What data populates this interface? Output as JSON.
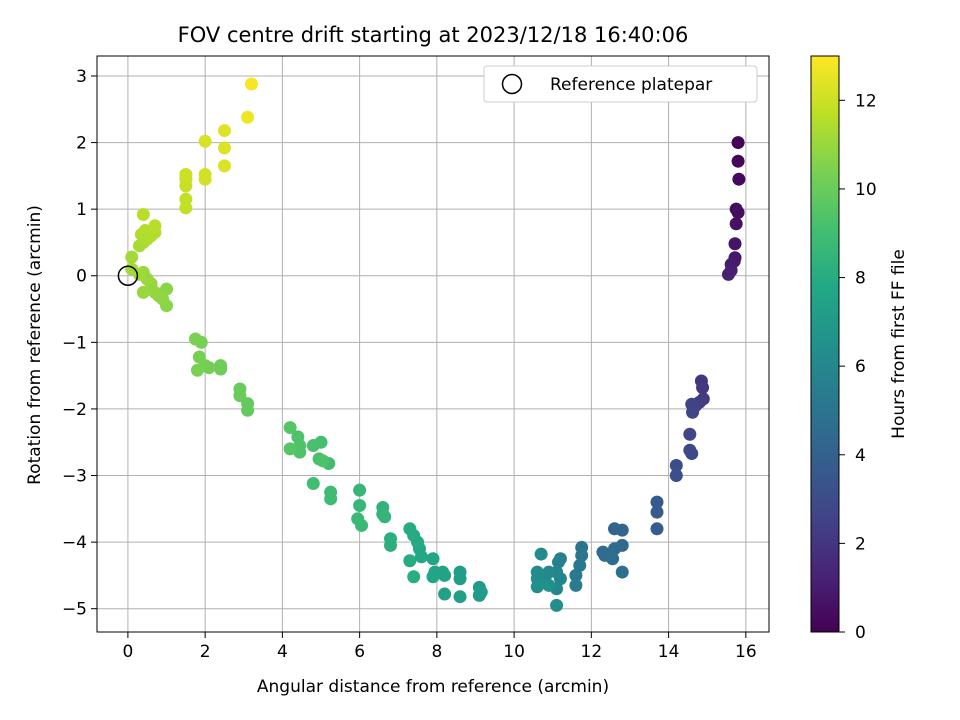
{
  "chart_data": {
    "type": "scatter",
    "title": "FOV centre drift starting at 2023/12/18 16:40:06",
    "xlabel": "Angular distance from reference (arcmin)",
    "ylabel": "Rotation from reference (arcmin)",
    "xlim": [
      -0.8,
      16.6
    ],
    "ylim": [
      -5.35,
      3.3
    ],
    "xticks": [
      0,
      2,
      4,
      6,
      8,
      10,
      12,
      14,
      16
    ],
    "yticks": [
      -5,
      -4,
      -3,
      -2,
      -1,
      0,
      1,
      2,
      3
    ],
    "grid": true,
    "legend": {
      "position": "top-right",
      "entries": [
        "Reference platepar"
      ]
    },
    "reference_point": {
      "x": 0,
      "y": 0
    },
    "colorbar": {
      "label": "Hours from first FF file",
      "range": [
        0,
        13
      ],
      "ticks": [
        0,
        2,
        4,
        6,
        8,
        10,
        12
      ],
      "colormap": "viridis"
    },
    "points": [
      {
        "x": 15.8,
        "y": 2.0,
        "h": 0.1
      },
      {
        "x": 15.8,
        "y": 1.72,
        "h": 0.2
      },
      {
        "x": 15.82,
        "y": 1.45,
        "h": 0.3
      },
      {
        "x": 15.75,
        "y": 1.0,
        "h": 0.4
      },
      {
        "x": 15.8,
        "y": 0.95,
        "h": 0.5
      },
      {
        "x": 15.75,
        "y": 0.78,
        "h": 0.6
      },
      {
        "x": 15.72,
        "y": 0.48,
        "h": 0.7
      },
      {
        "x": 15.72,
        "y": 0.27,
        "h": 0.8
      },
      {
        "x": 15.7,
        "y": 0.22,
        "h": 0.9
      },
      {
        "x": 15.62,
        "y": 0.17,
        "h": 1.0
      },
      {
        "x": 15.62,
        "y": 0.08,
        "h": 1.1
      },
      {
        "x": 15.55,
        "y": 0.02,
        "h": 1.2
      },
      {
        "x": 14.85,
        "y": -1.58,
        "h": 2.0
      },
      {
        "x": 14.88,
        "y": -1.68,
        "h": 2.1
      },
      {
        "x": 14.9,
        "y": -1.85,
        "h": 2.2
      },
      {
        "x": 14.8,
        "y": -1.9,
        "h": 2.3
      },
      {
        "x": 14.7,
        "y": -1.95,
        "h": 2.4
      },
      {
        "x": 14.6,
        "y": -1.93,
        "h": 2.5
      },
      {
        "x": 14.62,
        "y": -2.05,
        "h": 2.6
      },
      {
        "x": 14.55,
        "y": -2.38,
        "h": 2.7
      },
      {
        "x": 14.55,
        "y": -2.62,
        "h": 2.8
      },
      {
        "x": 14.6,
        "y": -2.67,
        "h": 2.9
      },
      {
        "x": 14.2,
        "y": -2.85,
        "h": 3.1
      },
      {
        "x": 14.2,
        "y": -3.0,
        "h": 3.2
      },
      {
        "x": 13.7,
        "y": -3.4,
        "h": 3.6
      },
      {
        "x": 13.7,
        "y": -3.55,
        "h": 3.7
      },
      {
        "x": 13.7,
        "y": -3.8,
        "h": 3.8
      },
      {
        "x": 12.6,
        "y": -3.8,
        "h": 4.2
      },
      {
        "x": 12.8,
        "y": -3.82,
        "h": 4.3
      },
      {
        "x": 12.8,
        "y": -4.05,
        "h": 4.4
      },
      {
        "x": 12.6,
        "y": -4.1,
        "h": 4.5
      },
      {
        "x": 12.3,
        "y": -4.15,
        "h": 4.5
      },
      {
        "x": 12.35,
        "y": -4.2,
        "h": 4.6
      },
      {
        "x": 12.5,
        "y": -4.2,
        "h": 4.6
      },
      {
        "x": 12.55,
        "y": -4.25,
        "h": 4.7
      },
      {
        "x": 12.8,
        "y": -4.45,
        "h": 4.8
      },
      {
        "x": 11.75,
        "y": -4.08,
        "h": 5.0
      },
      {
        "x": 11.75,
        "y": -4.2,
        "h": 5.1
      },
      {
        "x": 11.7,
        "y": -4.35,
        "h": 5.2
      },
      {
        "x": 11.6,
        "y": -4.5,
        "h": 5.3
      },
      {
        "x": 11.6,
        "y": -4.65,
        "h": 5.4
      },
      {
        "x": 11.2,
        "y": -4.25,
        "h": 5.6
      },
      {
        "x": 11.15,
        "y": -4.3,
        "h": 5.7
      },
      {
        "x": 11.1,
        "y": -4.45,
        "h": 5.8
      },
      {
        "x": 11.2,
        "y": -4.55,
        "h": 5.9
      },
      {
        "x": 11.1,
        "y": -4.7,
        "h": 6.0
      },
      {
        "x": 10.9,
        "y": -4.45,
        "h": 6.1
      },
      {
        "x": 10.8,
        "y": -4.55,
        "h": 6.1
      },
      {
        "x": 10.7,
        "y": -4.6,
        "h": 6.2
      },
      {
        "x": 10.7,
        "y": -4.18,
        "h": 6.2
      },
      {
        "x": 10.6,
        "y": -4.45,
        "h": 6.3
      },
      {
        "x": 10.6,
        "y": -4.55,
        "h": 6.3
      },
      {
        "x": 10.6,
        "y": -4.67,
        "h": 6.4
      },
      {
        "x": 11.1,
        "y": -4.95,
        "h": 6.4
      },
      {
        "x": 10.9,
        "y": -4.65,
        "h": 6.5
      },
      {
        "x": 9.1,
        "y": -4.68,
        "h": 7.0
      },
      {
        "x": 9.1,
        "y": -4.8,
        "h": 7.0
      },
      {
        "x": 9.15,
        "y": -4.75,
        "h": 7.1
      },
      {
        "x": 8.6,
        "y": -4.45,
        "h": 7.2
      },
      {
        "x": 8.6,
        "y": -4.55,
        "h": 7.2
      },
      {
        "x": 8.6,
        "y": -4.82,
        "h": 7.3
      },
      {
        "x": 8.2,
        "y": -4.78,
        "h": 7.4
      },
      {
        "x": 8.2,
        "y": -4.5,
        "h": 7.5
      },
      {
        "x": 8.15,
        "y": -4.45,
        "h": 7.5
      },
      {
        "x": 7.9,
        "y": -4.25,
        "h": 7.6
      },
      {
        "x": 7.95,
        "y": -4.45,
        "h": 7.6
      },
      {
        "x": 7.9,
        "y": -4.52,
        "h": 7.7
      },
      {
        "x": 7.6,
        "y": -4.22,
        "h": 7.8
      },
      {
        "x": 7.55,
        "y": -4.1,
        "h": 7.8
      },
      {
        "x": 7.5,
        "y": -4.0,
        "h": 7.9
      },
      {
        "x": 7.4,
        "y": -3.9,
        "h": 7.9
      },
      {
        "x": 7.3,
        "y": -3.8,
        "h": 8.0
      },
      {
        "x": 7.3,
        "y": -4.28,
        "h": 8.0
      },
      {
        "x": 7.4,
        "y": -4.52,
        "h": 8.1
      },
      {
        "x": 6.8,
        "y": -3.95,
        "h": 8.2
      },
      {
        "x": 6.8,
        "y": -4.05,
        "h": 8.2
      },
      {
        "x": 6.6,
        "y": -3.48,
        "h": 8.4
      },
      {
        "x": 6.6,
        "y": -3.58,
        "h": 8.4
      },
      {
        "x": 6.65,
        "y": -3.62,
        "h": 8.5
      },
      {
        "x": 6.0,
        "y": -3.22,
        "h": 8.6
      },
      {
        "x": 6.0,
        "y": -3.45,
        "h": 8.6
      },
      {
        "x": 5.95,
        "y": -3.65,
        "h": 8.7
      },
      {
        "x": 6.05,
        "y": -3.75,
        "h": 8.7
      },
      {
        "x": 5.2,
        "y": -2.82,
        "h": 9.0
      },
      {
        "x": 5.25,
        "y": -3.25,
        "h": 8.9
      },
      {
        "x": 5.25,
        "y": -3.35,
        "h": 8.9
      },
      {
        "x": 4.8,
        "y": -3.12,
        "h": 9.0
      },
      {
        "x": 5.0,
        "y": -2.5,
        "h": 9.1
      },
      {
        "x": 4.8,
        "y": -2.55,
        "h": 9.2
      },
      {
        "x": 4.95,
        "y": -2.75,
        "h": 9.2
      },
      {
        "x": 5.05,
        "y": -2.78,
        "h": 9.3
      },
      {
        "x": 4.4,
        "y": -2.42,
        "h": 9.3
      },
      {
        "x": 4.45,
        "y": -2.55,
        "h": 9.4
      },
      {
        "x": 4.45,
        "y": -2.65,
        "h": 9.4
      },
      {
        "x": 4.2,
        "y": -2.28,
        "h": 9.5
      },
      {
        "x": 4.2,
        "y": -2.6,
        "h": 9.5
      },
      {
        "x": 3.1,
        "y": -1.92,
        "h": 9.9
      },
      {
        "x": 3.1,
        "y": -2.02,
        "h": 9.9
      },
      {
        "x": 2.9,
        "y": -1.7,
        "h": 10.0
      },
      {
        "x": 2.9,
        "y": -1.8,
        "h": 10.0
      },
      {
        "x": 2.4,
        "y": -1.35,
        "h": 10.1
      },
      {
        "x": 2.4,
        "y": -1.4,
        "h": 10.1
      },
      {
        "x": 2.1,
        "y": -1.38,
        "h": 10.2
      },
      {
        "x": 2.0,
        "y": -1.35,
        "h": 10.2
      },
      {
        "x": 1.85,
        "y": -1.22,
        "h": 10.3
      },
      {
        "x": 1.9,
        "y": -1.0,
        "h": 10.3
      },
      {
        "x": 1.75,
        "y": -0.95,
        "h": 10.4
      },
      {
        "x": 1.8,
        "y": -1.42,
        "h": 10.4
      },
      {
        "x": 1.0,
        "y": -0.45,
        "h": 10.7
      },
      {
        "x": 1.0,
        "y": -0.2,
        "h": 10.7
      },
      {
        "x": 0.9,
        "y": -0.35,
        "h": 10.8
      },
      {
        "x": 0.8,
        "y": -0.3,
        "h": 10.8
      },
      {
        "x": 0.7,
        "y": -0.25,
        "h": 10.9
      },
      {
        "x": 0.6,
        "y": -0.12,
        "h": 10.9
      },
      {
        "x": 0.5,
        "y": -0.05,
        "h": 11.0
      },
      {
        "x": 0.4,
        "y": 0.05,
        "h": 11.0
      },
      {
        "x": 0.4,
        "y": -0.25,
        "h": 11.0
      },
      {
        "x": 0.3,
        "y": 0.02,
        "h": 11.1
      },
      {
        "x": 0.1,
        "y": 0.1,
        "h": 11.2
      },
      {
        "x": 0.1,
        "y": 0.28,
        "h": 11.2
      },
      {
        "x": 0.3,
        "y": 0.45,
        "h": 11.3
      },
      {
        "x": 0.4,
        "y": 0.5,
        "h": 11.3
      },
      {
        "x": 0.5,
        "y": 0.55,
        "h": 11.4
      },
      {
        "x": 0.35,
        "y": 0.62,
        "h": 11.4
      },
      {
        "x": 0.45,
        "y": 0.68,
        "h": 11.5
      },
      {
        "x": 0.6,
        "y": 0.6,
        "h": 11.5
      },
      {
        "x": 0.7,
        "y": 0.65,
        "h": 11.5
      },
      {
        "x": 0.7,
        "y": 0.75,
        "h": 11.6
      },
      {
        "x": 0.4,
        "y": 0.92,
        "h": 11.6
      },
      {
        "x": 1.5,
        "y": 1.02,
        "h": 11.8
      },
      {
        "x": 1.5,
        "y": 1.15,
        "h": 11.8
      },
      {
        "x": 1.5,
        "y": 1.35,
        "h": 11.9
      },
      {
        "x": 1.5,
        "y": 1.45,
        "h": 11.9
      },
      {
        "x": 1.5,
        "y": 1.52,
        "h": 12.0
      },
      {
        "x": 2.0,
        "y": 1.45,
        "h": 12.1
      },
      {
        "x": 2.0,
        "y": 1.52,
        "h": 12.1
      },
      {
        "x": 2.0,
        "y": 2.02,
        "h": 12.2
      },
      {
        "x": 2.5,
        "y": 1.65,
        "h": 12.3
      },
      {
        "x": 2.5,
        "y": 1.92,
        "h": 12.3
      },
      {
        "x": 2.5,
        "y": 2.18,
        "h": 12.4
      },
      {
        "x": 3.1,
        "y": 2.38,
        "h": 12.7
      },
      {
        "x": 3.2,
        "y": 2.88,
        "h": 12.9
      }
    ]
  }
}
